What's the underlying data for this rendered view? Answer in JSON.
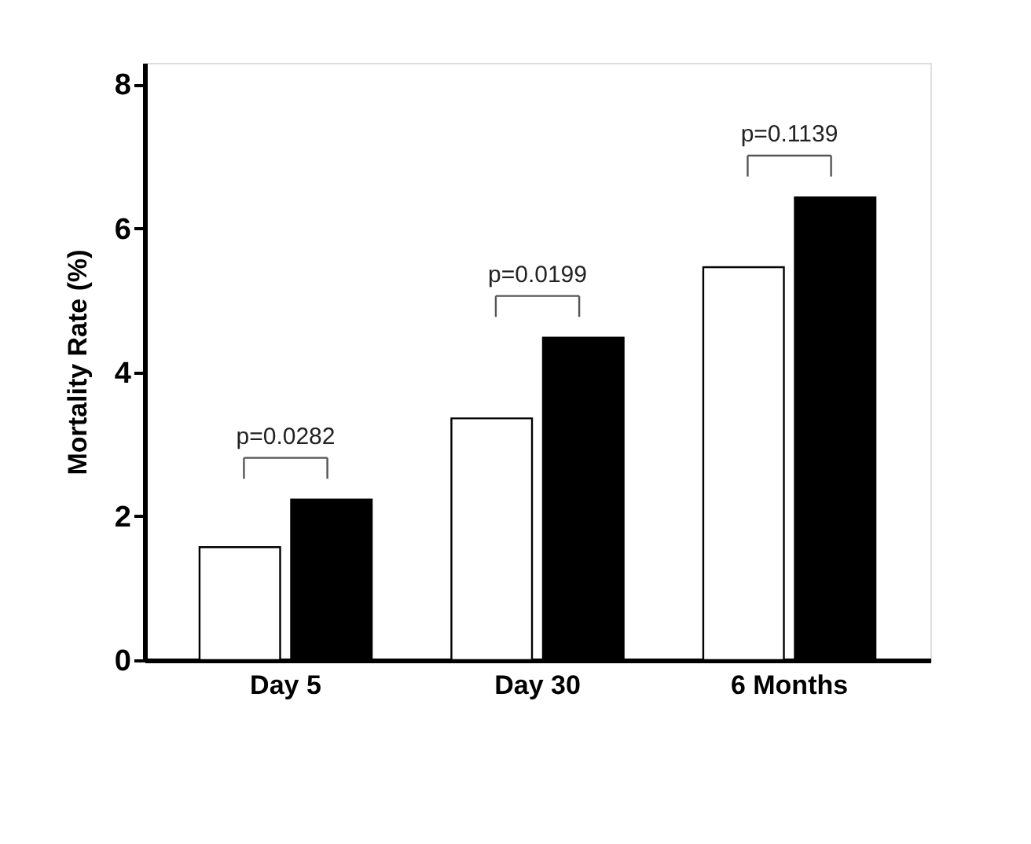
{
  "chart_data": {
    "type": "bar",
    "ylabel": "Mortality Rate (%)",
    "categories": [
      "Day 5",
      "Day 30",
      "6 Months"
    ],
    "series": [
      {
        "color": "#ffffff",
        "values": [
          1.57,
          3.36,
          5.46
        ]
      },
      {
        "color": "#000000",
        "values": [
          2.23,
          4.48,
          6.43
        ]
      }
    ],
    "ylim": [
      0,
      8.3
    ],
    "yticks": [
      0,
      2,
      4,
      6,
      8
    ],
    "grid": false,
    "legend": false,
    "annotations": [
      "p=0.0282",
      "p=0.0199",
      "p=0.1139"
    ]
  }
}
